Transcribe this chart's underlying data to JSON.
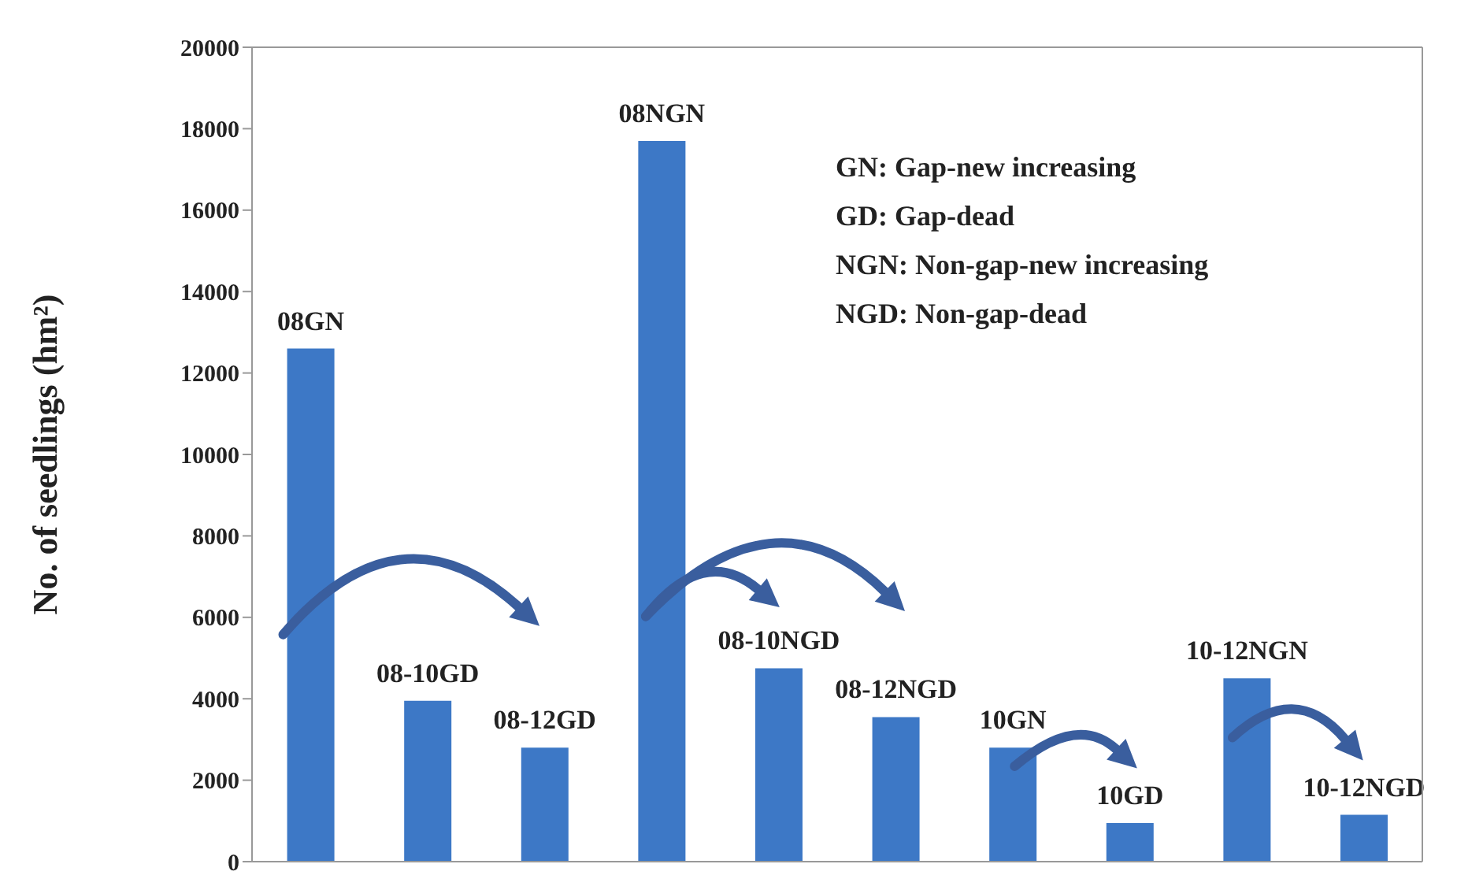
{
  "chart_data": {
    "type": "bar",
    "ylabel": "No. of seedlings (hm²)",
    "categories": [
      "08GN",
      "08-10GD",
      "08-12GD",
      "08NGN",
      "08-10NGD",
      "08-12NGD",
      "10GN",
      "10GD",
      "10-12NGN",
      "10-12NGD"
    ],
    "values": [
      12600,
      3950,
      2800,
      17700,
      4750,
      3550,
      2800,
      950,
      4500,
      1150
    ],
    "color": "#3d78c6",
    "ylim": [
      0,
      20000
    ],
    "yticks": [
      0,
      2000,
      4000,
      6000,
      8000,
      10000,
      12000,
      14000,
      16000,
      18000,
      20000
    ],
    "grid": false,
    "legend": false,
    "tick_labels": "y",
    "annotations": [
      "GN: Gap-new increasing",
      "GD: Gap-dead",
      "NGN: Non-gap-new increasing",
      "NGD: Non-gap-dead"
    ]
  }
}
